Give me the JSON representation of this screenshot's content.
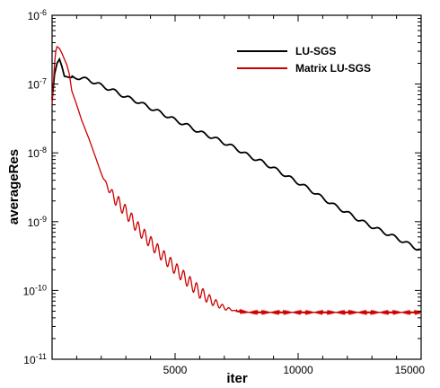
{
  "chart_data": {
    "type": "line",
    "title": "",
    "xlabel": "iter",
    "ylabel": "averageRes",
    "x_scale": "linear",
    "y_scale": "log",
    "xlim": [
      0,
      15000
    ],
    "ylim": [
      1e-11,
      1e-06
    ],
    "x_ticks": [
      {
        "value": 5000,
        "label": "5000"
      },
      {
        "value": 10000,
        "label": "10000"
      },
      {
        "value": 15000,
        "label": "15000"
      }
    ],
    "y_ticks": [
      {
        "value": 1e-11,
        "base": "10",
        "exp": "-11"
      },
      {
        "value": 1e-10,
        "base": "10",
        "exp": "-10"
      },
      {
        "value": 1e-09,
        "base": "10",
        "exp": "-9"
      },
      {
        "value": 1e-08,
        "base": "10",
        "exp": "-8"
      },
      {
        "value": 1e-07,
        "base": "10",
        "exp": "-7"
      },
      {
        "value": 1e-06,
        "base": "10",
        "exp": "-6"
      }
    ],
    "grid": false,
    "legend": {
      "position": "top-right"
    },
    "series": [
      {
        "name": "LU-SGS",
        "color": "#000000",
        "x": [
          0,
          50,
          100,
          200,
          300,
          400,
          500,
          700,
          1000,
          1500,
          2000,
          2500,
          3000,
          3500,
          4000,
          4500,
          5000,
          5500,
          6000,
          6500,
          7000,
          7500,
          8000,
          8500,
          9000,
          9500,
          10000,
          10500,
          11000,
          11500,
          12000,
          12500,
          13000,
          13500,
          14000,
          14500,
          15000
        ],
        "y": [
          6e-08,
          9e-08,
          1.4e-07,
          2e-07,
          2.3e-07,
          1.8e-07,
          1.3e-07,
          1.25e-07,
          1.25e-07,
          1.15e-07,
          9.5e-08,
          8e-08,
          6.5e-08,
          5.5e-08,
          4.5e-08,
          3.7e-08,
          3e-08,
          2.5e-08,
          2e-08,
          1.7e-08,
          1.4e-08,
          1.15e-08,
          9e-09,
          7.5e-09,
          6e-09,
          4.7e-09,
          3.7e-09,
          2.9e-09,
          2.2e-09,
          1.7e-09,
          1.35e-09,
          1.05e-09,
          8.5e-10,
          7e-10,
          5.8e-10,
          4.7e-10,
          3.8e-10
        ]
      },
      {
        "name": "Matrix LU-SGS",
        "color": "#cc0000",
        "x": [
          0,
          50,
          100,
          150,
          200,
          300,
          400,
          500,
          600,
          700,
          800,
          1000,
          1200,
          1500,
          1800,
          2000,
          2200,
          2500,
          3000,
          3500,
          4000,
          4500,
          5000,
          5500,
          6000,
          6500,
          7000,
          7500,
          8000,
          9000,
          10000,
          11000,
          12000,
          13000,
          14000,
          15000
        ],
        "y": [
          5e-08,
          1e-07,
          2e-07,
          3e-07,
          3.5e-07,
          3.3e-07,
          2.8e-07,
          2.3e-07,
          1.9e-07,
          1.4e-07,
          8e-08,
          5e-08,
          3e-08,
          1.6e-08,
          8e-09,
          5e-09,
          3.5e-09,
          2.3e-09,
          1.4e-09,
          8e-10,
          5e-10,
          3.2e-10,
          2.1e-10,
          1.4e-10,
          9.5e-11,
          7e-11,
          5.6e-11,
          5e-11,
          4.8e-11,
          4.8e-11,
          4.8e-11,
          4.8e-11,
          4.8e-11,
          4.8e-11,
          4.8e-11,
          4.8e-11
        ]
      }
    ]
  }
}
